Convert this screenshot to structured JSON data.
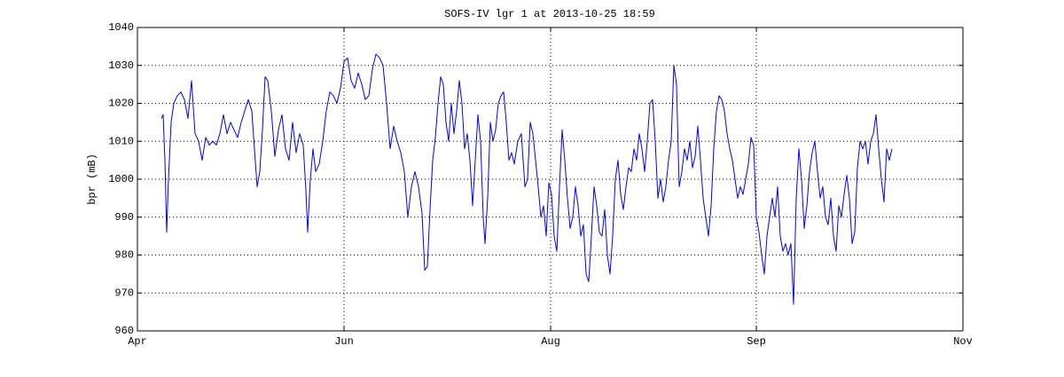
{
  "chart_data": {
    "type": "line",
    "title": "SOFS-IV lgr 1 at 2013-10-25 18:59",
    "y_label": "bpr (mB)",
    "xlim": [
      155,
      1086
    ],
    "xticks": [
      {
        "value": 155,
        "label": "Apr"
      },
      {
        "value": 388,
        "label": "Jun"
      },
      {
        "value": 621,
        "label": "Aug"
      },
      {
        "value": 853,
        "label": "Sep"
      },
      {
        "value": 1086,
        "label": "Nov"
      }
    ],
    "ylim": [
      960,
      1040
    ],
    "yticks": [
      960,
      970,
      980,
      990,
      1000,
      1010,
      1020,
      1030,
      1040
    ],
    "grid": true,
    "x": [
      182,
      184,
      186,
      188,
      190,
      193,
      196,
      200,
      204,
      208,
      212,
      216,
      220,
      224,
      228,
      232,
      236,
      240,
      244,
      248,
      252,
      256,
      260,
      264,
      268,
      272,
      276,
      280,
      284,
      287,
      290,
      293,
      296,
      299,
      302,
      306,
      310,
      314,
      318,
      322,
      326,
      330,
      334,
      338,
      342,
      345,
      347,
      350,
      353,
      356,
      360,
      364,
      368,
      372,
      376,
      380,
      384,
      388,
      392,
      396,
      400,
      404,
      408,
      412,
      416,
      420,
      424,
      428,
      432,
      436,
      440,
      444,
      448,
      452,
      456,
      460,
      464,
      468,
      472,
      476,
      479,
      482,
      485,
      488,
      491,
      494,
      497,
      500,
      503,
      506,
      509,
      512,
      515,
      518,
      521,
      524,
      527,
      530,
      533,
      536,
      539,
      542,
      545,
      547,
      550,
      553,
      556,
      559,
      562,
      565,
      568,
      571,
      574,
      577,
      580,
      584,
      588,
      592,
      595,
      598,
      601,
      604,
      607,
      610,
      613,
      616,
      619,
      622,
      625,
      628,
      631,
      634,
      637,
      640,
      643,
      646,
      649,
      652,
      655,
      658,
      661,
      664,
      667,
      670,
      673,
      676,
      679,
      682,
      685,
      688,
      691,
      694,
      697,
      700,
      703,
      706,
      709,
      712,
      715,
      718,
      721,
      724,
      727,
      730,
      733,
      736,
      739,
      742,
      745,
      748,
      751,
      754,
      757,
      760,
      763,
      766,
      769,
      772,
      775,
      778,
      781,
      784,
      787,
      790,
      793,
      796,
      799,
      802,
      805,
      808,
      811,
      814,
      817,
      820,
      823,
      826,
      829,
      832,
      835,
      838,
      841,
      844,
      847,
      850,
      853,
      856,
      859,
      862,
      865,
      868,
      871,
      874,
      877,
      880,
      883,
      886,
      889,
      892,
      895,
      898,
      901,
      904,
      907,
      910,
      913,
      916,
      919,
      922,
      925,
      928,
      931,
      934,
      937,
      940,
      943,
      946,
      949,
      952,
      955,
      958,
      961,
      964,
      967,
      970,
      973,
      976,
      979,
      982,
      985,
      988,
      991,
      994,
      997,
      1000,
      1003,
      1006
    ],
    "series": [
      {
        "color": "#0000ff",
        "values": [
          1016,
          1017,
          1005,
          986,
          1000,
          1015,
          1020,
          1022,
          1023,
          1021,
          1016,
          1026,
          1012,
          1010,
          1005,
          1011,
          1009,
          1010,
          1009,
          1012,
          1017,
          1012,
          1015,
          1013,
          1011,
          1015,
          1018,
          1021,
          1018,
          1008,
          998,
          1002,
          1013,
          1027,
          1026,
          1018,
          1006,
          1013,
          1017,
          1008,
          1005,
          1015,
          1007,
          1012,
          1009,
          997,
          986,
          1000,
          1008,
          1002,
          1004,
          1010,
          1018,
          1023,
          1022,
          1020,
          1024,
          1031,
          1032,
          1026,
          1024,
          1028,
          1025,
          1021,
          1022,
          1029,
          1033,
          1032,
          1030,
          1020,
          1008,
          1014,
          1010,
          1007,
          1002,
          990,
          998,
          1002,
          998,
          991,
          976,
          977,
          992,
          1005,
          1011,
          1020,
          1027,
          1025,
          1015,
          1010,
          1020,
          1012,
          1018,
          1026,
          1020,
          1008,
          1012,
          1005,
          993,
          1005,
          1017,
          1010,
          990,
          983,
          995,
          1015,
          1010,
          1013,
          1020,
          1022,
          1023,
          1015,
          1005,
          1007,
          1004,
          1010,
          1012,
          998,
          1000,
          1015,
          1012,
          1005,
          998,
          990,
          993,
          985,
          999,
          996,
          985,
          981,
          998,
          1013,
          1005,
          995,
          987,
          990,
          998,
          993,
          985,
          988,
          975,
          973,
          985,
          998,
          993,
          986,
          985,
          992,
          980,
          975,
          985,
          1000,
          1005,
          996,
          992,
          998,
          1003,
          1002,
          1008,
          1005,
          1012,
          1008,
          1002,
          1010,
          1020,
          1021,
          1010,
          995,
          1000,
          994,
          998,
          1005,
          1010,
          1030,
          1025,
          998,
          1002,
          1008,
          1005,
          1010,
          1003,
          1006,
          1014,
          1005,
          995,
          990,
          985,
          993,
          1008,
          1018,
          1022,
          1021,
          1018,
          1012,
          1008,
          1005,
          1000,
          995,
          998,
          996,
          1000,
          1004,
          1011,
          1009,
          990,
          986,
          980,
          975,
          985,
          990,
          995,
          990,
          998,
          985,
          981,
          983,
          980,
          983,
          967,
          995,
          1008,
          1000,
          987,
          993,
          1002,
          1007,
          1010,
          1002,
          995,
          998,
          990,
          988,
          995,
          985,
          981,
          993,
          990,
          996,
          1001,
          995,
          983,
          986,
          1003,
          1010,
          1008,
          1010,
          1004,
          1010,
          1012,
          1017,
          1008,
          1000,
          994,
          1008,
          1005,
          1008
        ]
      }
    ]
  }
}
